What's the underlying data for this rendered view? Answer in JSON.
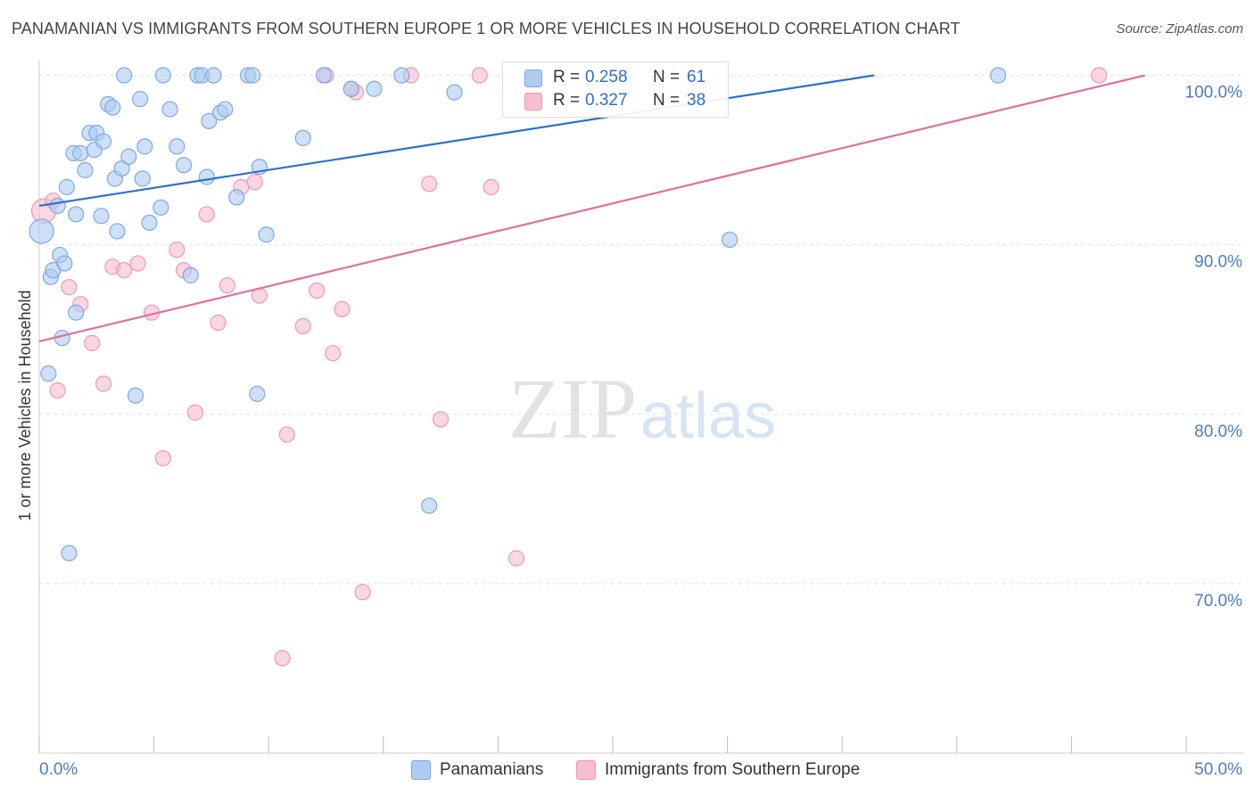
{
  "title": "PANAMANIAN VS IMMIGRANTS FROM SOUTHERN EUROPE 1 OR MORE VEHICLES IN HOUSEHOLD CORRELATION CHART",
  "source": "Source: ZipAtlas.com",
  "watermark": {
    "zip": "ZIP",
    "atlas": "atlas"
  },
  "legend": {
    "r_label": "R =",
    "n_label": "N =",
    "series": [
      {
        "name": "Panamanians",
        "r": "0.258",
        "n": "61"
      },
      {
        "name": "Immigrants from Southern Europe",
        "r": "0.327",
        "n": "38"
      }
    ]
  },
  "colors": {
    "blue_fill": "#aecbf1",
    "blue_stroke": "#7ea8e3",
    "blue_line": "#2d6fcf",
    "pink_fill": "#f7bdd0",
    "pink_stroke": "#ee98b6",
    "pink_line": "#e07095",
    "axis_text": "#4a7cc9",
    "grid": "#e3e3e3"
  },
  "chart_data": {
    "type": "scatter",
    "title": "PANAMANIAN VS IMMIGRANTS FROM SOUTHERN EUROPE 1 OR MORE VEHICLES IN HOUSEHOLD CORRELATION CHART",
    "xlabel": "",
    "ylabel": "1 or more Vehicles in Household",
    "xlim": [
      0,
      50
    ],
    "ylim": [
      60,
      101.5
    ],
    "x_ticks": [
      "0.0%",
      "50.0%"
    ],
    "y_ticks": [
      {
        "value": 70,
        "label": "70.0%"
      },
      {
        "value": 80,
        "label": "80.0%"
      },
      {
        "value": 90,
        "label": "90.0%"
      },
      {
        "value": 100,
        "label": "100.0%"
      }
    ],
    "grid": true,
    "series": [
      {
        "name": "Panamanians",
        "r": 0.258,
        "n": 61,
        "trend": {
          "x1": 0,
          "y1": 92.3,
          "x2": 36.4,
          "y2": 100
        },
        "points": [
          {
            "x": 0.1,
            "y": 90.8,
            "s": 1.6
          },
          {
            "x": 0.4,
            "y": 82.4
          },
          {
            "x": 0.5,
            "y": 88.1
          },
          {
            "x": 0.6,
            "y": 88.5
          },
          {
            "x": 0.8,
            "y": 92.3
          },
          {
            "x": 0.9,
            "y": 89.4
          },
          {
            "x": 1.0,
            "y": 84.5
          },
          {
            "x": 1.1,
            "y": 88.9
          },
          {
            "x": 1.2,
            "y": 93.4
          },
          {
            "x": 1.3,
            "y": 71.8
          },
          {
            "x": 1.5,
            "y": 95.4
          },
          {
            "x": 1.6,
            "y": 86.0
          },
          {
            "x": 1.8,
            "y": 95.4
          },
          {
            "x": 2.0,
            "y": 94.4
          },
          {
            "x": 2.2,
            "y": 96.6
          },
          {
            "x": 2.4,
            "y": 95.6
          },
          {
            "x": 2.5,
            "y": 96.6
          },
          {
            "x": 2.7,
            "y": 91.7
          },
          {
            "x": 2.8,
            "y": 96.1
          },
          {
            "x": 3.0,
            "y": 98.3
          },
          {
            "x": 3.2,
            "y": 98.1
          },
          {
            "x": 3.3,
            "y": 93.9
          },
          {
            "x": 3.4,
            "y": 90.8
          },
          {
            "x": 3.6,
            "y": 94.5
          },
          {
            "x": 3.7,
            "y": 100
          },
          {
            "x": 3.9,
            "y": 95.2
          },
          {
            "x": 4.2,
            "y": 81.1
          },
          {
            "x": 4.4,
            "y": 98.6
          },
          {
            "x": 4.5,
            "y": 93.9
          },
          {
            "x": 4.6,
            "y": 95.8
          },
          {
            "x": 4.8,
            "y": 91.3
          },
          {
            "x": 5.3,
            "y": 92.2
          },
          {
            "x": 5.4,
            "y": 100
          },
          {
            "x": 5.7,
            "y": 98.0
          },
          {
            "x": 6.0,
            "y": 95.8
          },
          {
            "x": 6.3,
            "y": 94.7
          },
          {
            "x": 6.6,
            "y": 88.2
          },
          {
            "x": 6.9,
            "y": 100
          },
          {
            "x": 7.1,
            "y": 100
          },
          {
            "x": 7.3,
            "y": 94.0
          },
          {
            "x": 7.4,
            "y": 97.3
          },
          {
            "x": 7.6,
            "y": 100
          },
          {
            "x": 7.9,
            "y": 97.8
          },
          {
            "x": 8.1,
            "y": 98.0
          },
          {
            "x": 8.6,
            "y": 92.8
          },
          {
            "x": 9.1,
            "y": 100
          },
          {
            "x": 9.3,
            "y": 100
          },
          {
            "x": 9.5,
            "y": 81.2
          },
          {
            "x": 9.6,
            "y": 94.6
          },
          {
            "x": 9.9,
            "y": 90.6
          },
          {
            "x": 11.5,
            "y": 96.3
          },
          {
            "x": 12.4,
            "y": 100
          },
          {
            "x": 13.6,
            "y": 99.2
          },
          {
            "x": 14.6,
            "y": 99.2
          },
          {
            "x": 15.8,
            "y": 100
          },
          {
            "x": 17.0,
            "y": 74.6
          },
          {
            "x": 18.1,
            "y": 99.0
          },
          {
            "x": 23.2,
            "y": 100
          },
          {
            "x": 30.1,
            "y": 90.3
          },
          {
            "x": 41.8,
            "y": 100
          },
          {
            "x": 1.6,
            "y": 91.8
          }
        ]
      },
      {
        "name": "Immigrants from Southern Europe",
        "r": 0.327,
        "n": 38,
        "trend": {
          "x1": 0,
          "y1": 84.3,
          "x2": 48.2,
          "y2": 100
        },
        "points": [
          {
            "x": 0.2,
            "y": 92.0,
            "s": 1.6
          },
          {
            "x": 0.8,
            "y": 81.4
          },
          {
            "x": 1.3,
            "y": 87.5
          },
          {
            "x": 1.8,
            "y": 86.5
          },
          {
            "x": 2.3,
            "y": 84.2
          },
          {
            "x": 2.8,
            "y": 81.8
          },
          {
            "x": 3.2,
            "y": 88.7
          },
          {
            "x": 3.7,
            "y": 88.5
          },
          {
            "x": 4.3,
            "y": 88.9
          },
          {
            "x": 4.9,
            "y": 86.0
          },
          {
            "x": 5.4,
            "y": 77.4
          },
          {
            "x": 6.0,
            "y": 89.7
          },
          {
            "x": 6.3,
            "y": 88.5
          },
          {
            "x": 6.8,
            "y": 80.1
          },
          {
            "x": 7.3,
            "y": 91.8
          },
          {
            "x": 7.8,
            "y": 85.4
          },
          {
            "x": 8.2,
            "y": 87.6
          },
          {
            "x": 8.8,
            "y": 93.4
          },
          {
            "x": 9.4,
            "y": 93.7
          },
          {
            "x": 9.6,
            "y": 87.0
          },
          {
            "x": 10.6,
            "y": 65.6
          },
          {
            "x": 10.8,
            "y": 78.8
          },
          {
            "x": 11.5,
            "y": 85.2
          },
          {
            "x": 12.1,
            "y": 87.3
          },
          {
            "x": 12.5,
            "y": 100
          },
          {
            "x": 12.8,
            "y": 83.6
          },
          {
            "x": 13.2,
            "y": 86.2
          },
          {
            "x": 13.8,
            "y": 99.0
          },
          {
            "x": 14.1,
            "y": 69.5
          },
          {
            "x": 16.2,
            "y": 100
          },
          {
            "x": 17.0,
            "y": 93.6
          },
          {
            "x": 17.5,
            "y": 79.7
          },
          {
            "x": 19.2,
            "y": 100
          },
          {
            "x": 19.7,
            "y": 93.4
          },
          {
            "x": 20.8,
            "y": 71.5
          },
          {
            "x": 46.2,
            "y": 100
          },
          {
            "x": 0.6,
            "y": 92.6
          },
          {
            "x": 13.6,
            "y": 99.2
          }
        ]
      }
    ]
  }
}
